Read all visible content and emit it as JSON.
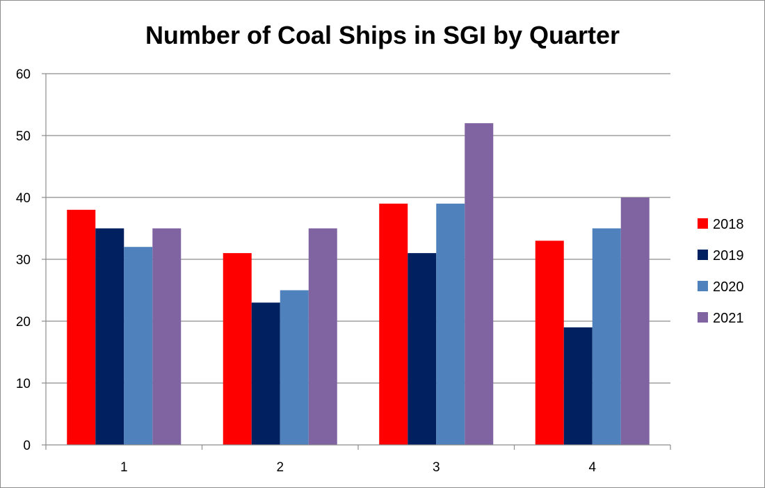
{
  "chart_data": {
    "type": "bar",
    "title": "Number of Coal Ships in SGI by Quarter",
    "xlabel": "",
    "ylabel": "",
    "categories": [
      "1",
      "2",
      "3",
      "4"
    ],
    "ylim": [
      0,
      60
    ],
    "yticks": [
      0,
      10,
      20,
      30,
      40,
      50,
      60
    ],
    "grid": true,
    "legend_position": "right",
    "series": [
      {
        "name": "2018",
        "color": "#ff0000",
        "values": [
          38,
          31,
          39,
          33
        ]
      },
      {
        "name": "2019",
        "color": "#002060",
        "values": [
          35,
          23,
          31,
          19
        ]
      },
      {
        "name": "2020",
        "color": "#4f81bd",
        "values": [
          32,
          25,
          39,
          35
        ]
      },
      {
        "name": "2021",
        "color": "#8064a2",
        "values": [
          35,
          35,
          52,
          40
        ]
      }
    ]
  }
}
